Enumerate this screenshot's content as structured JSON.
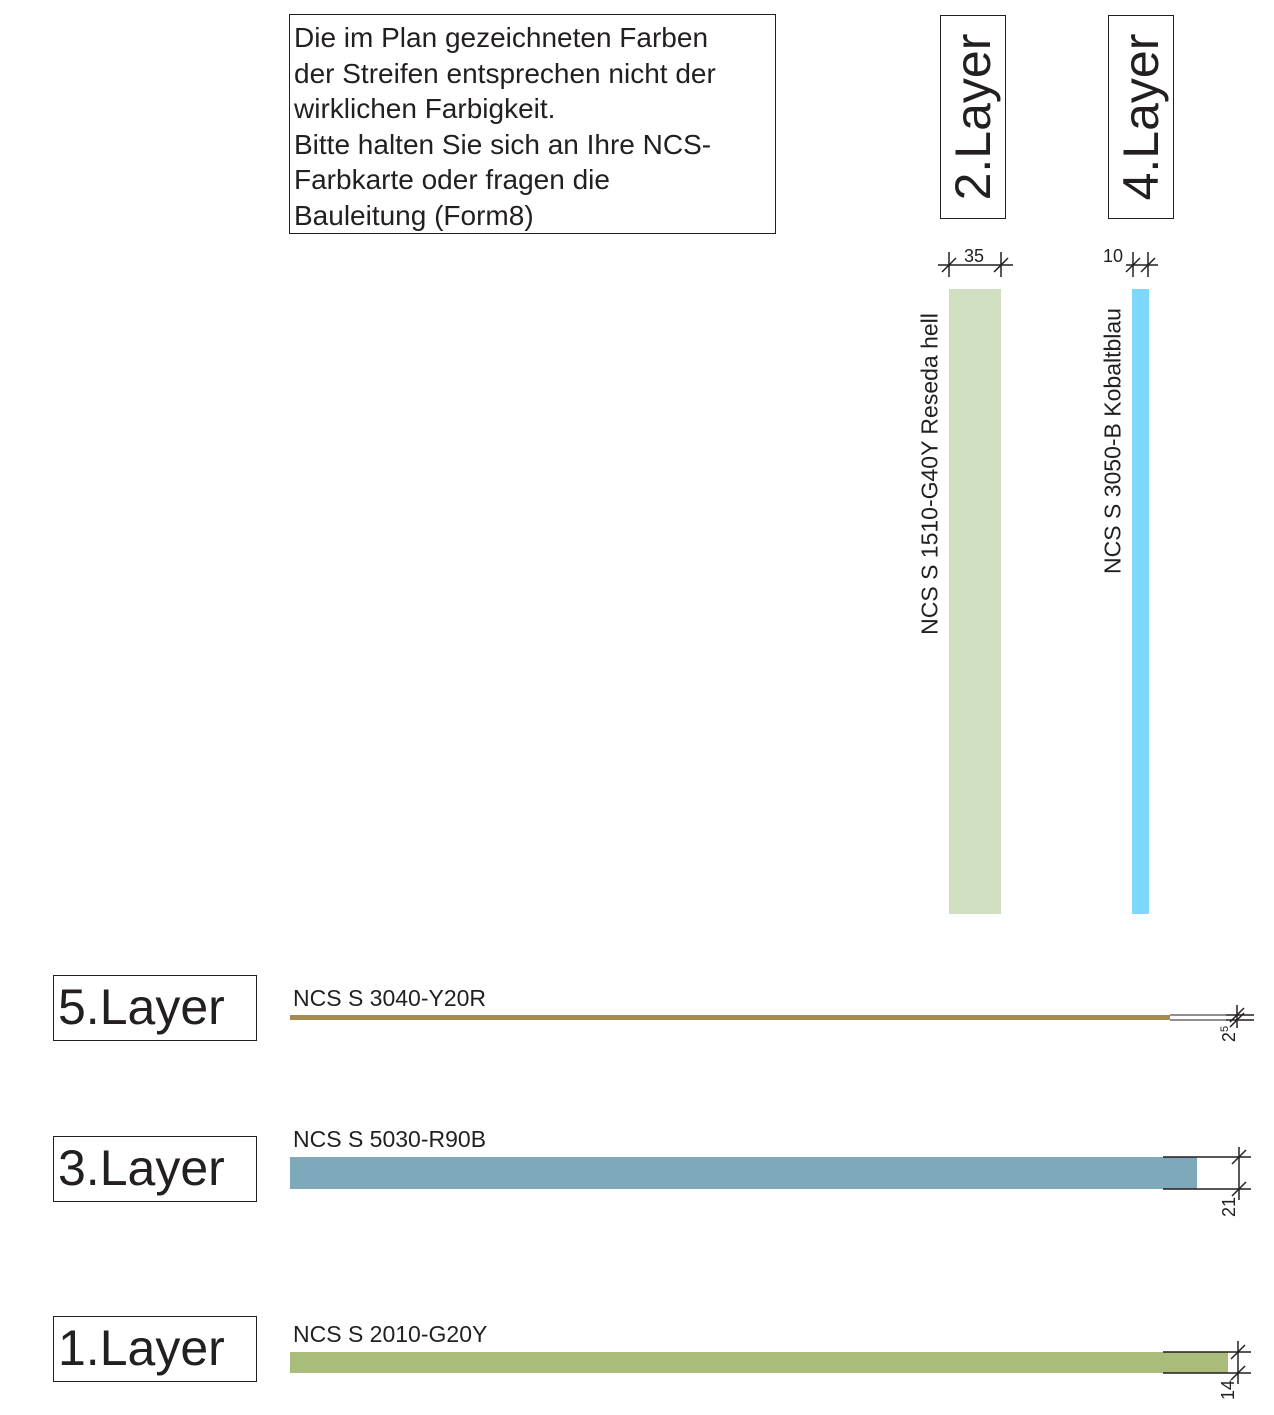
{
  "note": {
    "lines": [
      "Die im Plan gezeichneten Farben",
      "der Streifen entsprechen nicht der",
      "wirklichen Farbigkeit.",
      "Bitte halten Sie sich an Ihre NCS-",
      "Farbkarte oder fragen die",
      "Bauleitung (Form8)"
    ]
  },
  "layers": {
    "layer2": {
      "label": "2.Layer",
      "code": "NCS S 1510-G40Y Reseda hell",
      "width": "35",
      "color": "#cfdfc0"
    },
    "layer4": {
      "label": "4.Layer",
      "code": "NCS S 3050-B Kobaltblau",
      "width": "10",
      "color": "#7dd9fb"
    },
    "layer5": {
      "label": "5.Layer",
      "code": "NCS S 3040-Y20R",
      "width_main": "2",
      "width_sup": "5",
      "color": "#a78b4e"
    },
    "layer3": {
      "label": "3.Layer",
      "code": "NCS S 5030-R90B",
      "width": "21",
      "color": "#7ea9bb"
    },
    "layer1": {
      "label": "1.Layer",
      "code": "NCS S 2010-G20Y",
      "width": "14",
      "color": "#a9bc7a"
    }
  }
}
